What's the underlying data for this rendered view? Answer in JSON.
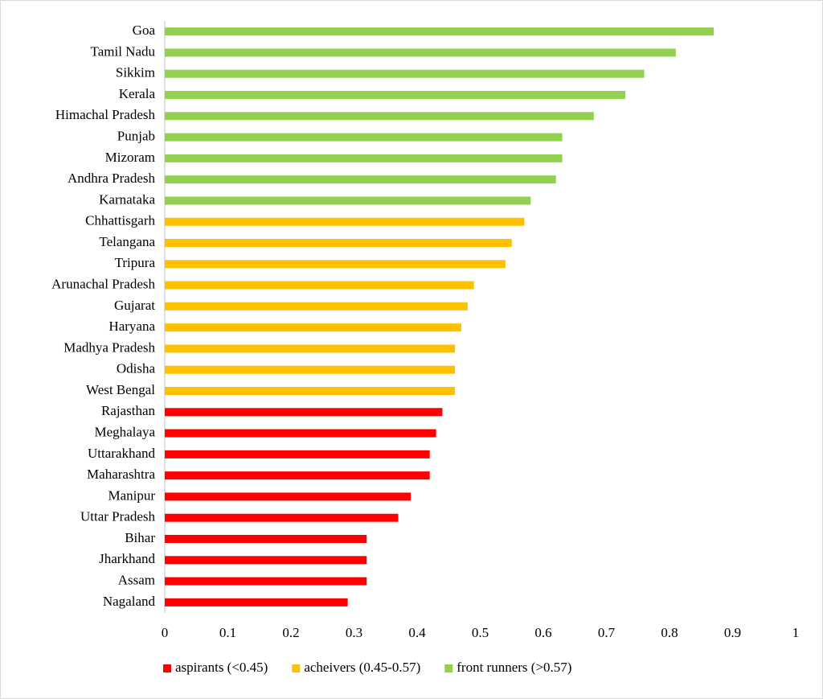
{
  "chart_data": {
    "type": "bar",
    "orientation": "horizontal",
    "categories": [
      "Goa",
      "Tamil Nadu",
      "Sikkim",
      "Kerala",
      "Himachal Pradesh",
      "Punjab",
      "Mizoram",
      "Andhra Pradesh",
      "Karnataka",
      "Chhattisgarh",
      "Telangana",
      "Tripura",
      "Arunachal Pradesh",
      "Gujarat",
      "Haryana",
      "Madhya Pradesh",
      "Odisha",
      "West Bengal",
      "Rajasthan",
      "Meghalaya",
      "Uttarakhand",
      "Maharashtra",
      "Manipur",
      "Uttar Pradesh",
      "Bihar",
      "Jharkhand",
      "Assam",
      "Nagaland"
    ],
    "series": [
      {
        "name": "aspirants (<0.45)",
        "color": "#ff0000",
        "values": [
          null,
          null,
          null,
          null,
          null,
          null,
          null,
          null,
          null,
          null,
          null,
          null,
          null,
          null,
          null,
          null,
          null,
          null,
          0.44,
          0.43,
          0.42,
          0.42,
          0.39,
          0.37,
          0.32,
          0.32,
          0.32,
          0.29
        ]
      },
      {
        "name": "acheivers (0.45-0.57)",
        "color": "#ffc000",
        "values": [
          null,
          null,
          null,
          null,
          null,
          null,
          null,
          null,
          null,
          0.57,
          0.55,
          0.54,
          0.49,
          0.48,
          0.47,
          0.46,
          0.46,
          0.46,
          null,
          null,
          null,
          null,
          null,
          null,
          null,
          null,
          null,
          null
        ]
      },
      {
        "name": "front runners (>0.57)",
        "color": "#92d050",
        "values": [
          0.87,
          0.81,
          0.76,
          0.73,
          0.68,
          0.63,
          0.63,
          0.62,
          0.58,
          null,
          null,
          null,
          null,
          null,
          null,
          null,
          null,
          null,
          null,
          null,
          null,
          null,
          null,
          null,
          null,
          null,
          null,
          null
        ]
      }
    ],
    "xlim": [
      0,
      1
    ],
    "xticks": [
      0,
      0.1,
      0.2,
      0.3,
      0.4,
      0.5,
      0.6,
      0.7,
      0.8,
      0.9,
      1
    ],
    "grid": false,
    "legend": "bottom"
  }
}
